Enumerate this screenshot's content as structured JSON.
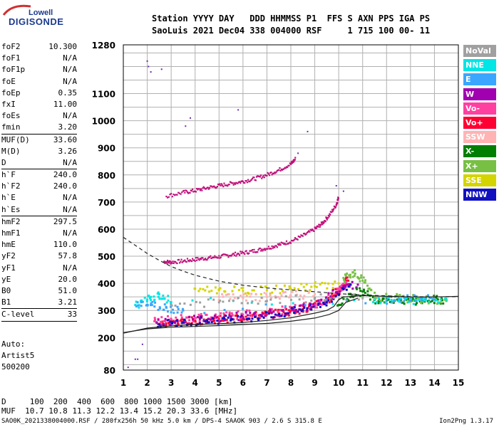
{
  "logo": {
    "line1": "Lowell",
    "line2": "DIGISONDE"
  },
  "header": {
    "line1": "Station YYYY DAY   DDD HHMMSS P1  FFS S AXN PPS IGA PS",
    "line2": "SaoLuis 2021 Dec04 338 004000 RSF     1 715 100 00- 11"
  },
  "params_group1": [
    {
      "name": "foF2",
      "value": "10.300"
    },
    {
      "name": "foF1",
      "value": "N/A"
    },
    {
      "name": "foF1p",
      "value": "N/A"
    },
    {
      "name": "foE",
      "value": "N/A"
    },
    {
      "name": "foEp",
      "value": "0.35"
    },
    {
      "name": "fxI",
      "value": "11.00"
    },
    {
      "name": "foEs",
      "value": "N/A"
    },
    {
      "name": "fmin",
      "value": "3.20"
    }
  ],
  "params_group2": [
    {
      "name": "MUF(D)",
      "value": "33.60"
    },
    {
      "name": "M(D)",
      "value": "3.26"
    },
    {
      "name": "D",
      "value": "N/A"
    }
  ],
  "params_group3": [
    {
      "name": "h`F",
      "value": "240.0"
    },
    {
      "name": "h`F2",
      "value": "240.0"
    },
    {
      "name": "h`E",
      "value": "N/A"
    },
    {
      "name": "h`Es",
      "value": "N/A"
    }
  ],
  "params_group4": [
    {
      "name": "hmF2",
      "value": "297.5"
    },
    {
      "name": "hmF1",
      "value": "N/A"
    },
    {
      "name": "hmE",
      "value": "110.0"
    },
    {
      "name": "yF2",
      "value": "57.8"
    },
    {
      "name": "yF1",
      "value": "N/A"
    },
    {
      "name": "yE",
      "value": "20.0"
    },
    {
      "name": "B0",
      "value": "51.0"
    },
    {
      "name": "B1",
      "value": "3.21"
    }
  ],
  "params_group5": [
    {
      "name": "C-level",
      "value": "33"
    }
  ],
  "auto": {
    "line1": "Auto:",
    "line2": "Artist5",
    "line3": "500200"
  },
  "legend": [
    {
      "label": "NoVal",
      "color": "#a0a0a0"
    },
    {
      "label": "NNE",
      "color": "#00e5e5"
    },
    {
      "label": "E",
      "color": "#3aa6ff"
    },
    {
      "label": "W",
      "color": "#a000b0"
    },
    {
      "label": "Vo-",
      "color": "#ff40a0"
    },
    {
      "label": "Vo+",
      "color": "#ff0033"
    },
    {
      "label": "SSW",
      "color": "#ffb3b3"
    },
    {
      "label": "X-",
      "color": "#007f00"
    },
    {
      "label": "X+",
      "color": "#77c044"
    },
    {
      "label": "SSE",
      "color": "#d4d400"
    },
    {
      "label": "NNW",
      "color": "#1010c0"
    }
  ],
  "footer": {
    "line1": "D     100  200  400  600  800 1000 1500 3000 [km]",
    "line2": "MUF  10.7 10.8 11.3 12.2 13.4 15.2 20.3 33.6 [MHz]",
    "line3": "SAO0K_2021338004000.RSF / 280fx256h 50 kHz 5.0 km / DPS-4 SAAOK 903 / 2.6 S 315.8 E",
    "version": "Ion2Png 1.3.17"
  },
  "chart_data": {
    "type": "scatter",
    "xlim": [
      1,
      15
    ],
    "ylim": [
      80,
      1280
    ],
    "x_ticks": [
      1,
      2,
      3,
      4,
      5,
      6,
      7,
      8,
      9,
      10,
      11,
      12,
      13,
      14,
      15
    ],
    "y_ticks": [
      80,
      200,
      300,
      400,
      500,
      600,
      700,
      800,
      900,
      1000,
      1100,
      1280
    ],
    "grid": true,
    "legend_position": "right",
    "series": [
      {
        "name": "Vo+",
        "color": "#ff0033",
        "points": [
          [
            2.5,
            250
          ],
          [
            3,
            255
          ],
          [
            3.5,
            258
          ],
          [
            4,
            262
          ],
          [
            4.5,
            265
          ],
          [
            5,
            268
          ],
          [
            5.5,
            272
          ],
          [
            6,
            276
          ],
          [
            6.5,
            280
          ],
          [
            7,
            285
          ],
          [
            7.5,
            290
          ],
          [
            8,
            298
          ],
          [
            8.5,
            305
          ],
          [
            9,
            318
          ],
          [
            9.5,
            335
          ],
          [
            9.8,
            355
          ],
          [
            10,
            375
          ],
          [
            10.2,
            395
          ],
          [
            10.4,
            410
          ]
        ]
      },
      {
        "name": "Vo-",
        "color": "#ff40a0",
        "points": [
          [
            2.3,
            260
          ],
          [
            3,
            268
          ],
          [
            4,
            272
          ],
          [
            5,
            278
          ],
          [
            6,
            285
          ],
          [
            7,
            292
          ],
          [
            8,
            305
          ],
          [
            9,
            322
          ],
          [
            9.5,
            340
          ],
          [
            10,
            380
          ],
          [
            10.3,
            400
          ]
        ]
      },
      {
        "name": "W",
        "color": "#a000b0",
        "points": [
          [
            2.4,
            255
          ],
          [
            3.2,
            262
          ],
          [
            4.2,
            268
          ],
          [
            5.2,
            275
          ],
          [
            6.2,
            282
          ],
          [
            7.2,
            290
          ],
          [
            8.2,
            300
          ],
          [
            9.2,
            325
          ],
          [
            10.2,
            390
          ],
          [
            10.8,
            395
          ]
        ]
      },
      {
        "name": "NNW",
        "color": "#1010c0",
        "points": [
          [
            2.5,
            248
          ],
          [
            3.5,
            255
          ],
          [
            4.5,
            262
          ],
          [
            5.5,
            268
          ],
          [
            6.5,
            276
          ],
          [
            7.5,
            286
          ],
          [
            8.5,
            302
          ],
          [
            9.5,
            330
          ],
          [
            10.5,
            395
          ]
        ]
      },
      {
        "name": "X-",
        "color": "#007f00",
        "points": [
          [
            10,
            320
          ],
          [
            10.5,
            360
          ],
          [
            11,
            370
          ],
          [
            11.5,
            340
          ],
          [
            12,
            345
          ],
          [
            12.5,
            340
          ],
          [
            13,
            335
          ],
          [
            13.5,
            338
          ],
          [
            14,
            340
          ],
          [
            14.5,
            338
          ]
        ]
      },
      {
        "name": "X+",
        "color": "#77c044",
        "points": [
          [
            10.2,
            420
          ],
          [
            10.6,
            440
          ],
          [
            11,
            410
          ],
          [
            11.5,
            350
          ],
          [
            12.5,
            345
          ],
          [
            13.5,
            340
          ],
          [
            14.5,
            335
          ]
        ]
      },
      {
        "name": "NNE",
        "color": "#00e5e5",
        "points": [
          [
            1.5,
            320
          ],
          [
            2,
            340
          ],
          [
            2.5,
            360
          ],
          [
            3,
            330
          ],
          [
            11.5,
            340
          ],
          [
            12.5,
            335
          ],
          [
            13.5,
            340
          ],
          [
            14.5,
            340
          ]
        ]
      },
      {
        "name": "E",
        "color": "#3aa6ff",
        "points": [
          [
            1.6,
            330
          ],
          [
            2.2,
            320
          ],
          [
            2.8,
            310
          ],
          [
            3.5,
            300
          ],
          [
            12,
            340
          ],
          [
            13,
            345
          ],
          [
            14,
            340
          ]
        ]
      },
      {
        "name": "SSE",
        "color": "#d4d400",
        "points": [
          [
            4,
            380
          ],
          [
            5,
            375
          ],
          [
            6,
            372
          ],
          [
            7,
            375
          ],
          [
            8,
            380
          ],
          [
            9,
            390
          ],
          [
            10,
            400
          ]
        ]
      },
      {
        "name": "SSW",
        "color": "#ffb3b3",
        "points": [
          [
            5,
            350
          ],
          [
            6,
            345
          ],
          [
            7,
            350
          ],
          [
            8,
            355
          ],
          [
            9,
            360
          ]
        ]
      },
      {
        "name": "NoVal",
        "color": "#a0a0a0",
        "points": [
          [
            3,
            320
          ],
          [
            5,
            330
          ],
          [
            7,
            335
          ],
          [
            9,
            345
          ],
          [
            11,
            345
          ]
        ]
      }
    ],
    "second_hop_trace": {
      "color": "#c0107a",
      "points": [
        [
          2.7,
          480
        ],
        [
          3,
          478
        ],
        [
          3.5,
          482
        ],
        [
          4,
          488
        ],
        [
          4.5,
          493
        ],
        [
          5,
          498
        ],
        [
          5.5,
          505
        ],
        [
          6,
          512
        ],
        [
          6.5,
          520
        ],
        [
          7,
          530
        ],
        [
          7.5,
          542
        ],
        [
          8,
          555
        ],
        [
          8.5,
          575
        ],
        [
          9,
          600
        ],
        [
          9.3,
          620
        ],
        [
          9.6,
          650
        ],
        [
          9.9,
          690
        ],
        [
          10,
          720
        ]
      ]
    },
    "third_hop_trace": {
      "color": "#c0107a",
      "points": [
        [
          2.8,
          722
        ],
        [
          3.5,
          735
        ],
        [
          4,
          742
        ],
        [
          4.5,
          752
        ],
        [
          5,
          760
        ],
        [
          5.5,
          768
        ],
        [
          6,
          776
        ],
        [
          6.5,
          786
        ],
        [
          7,
          800
        ],
        [
          7.5,
          818
        ],
        [
          8,
          840
        ],
        [
          8.2,
          860
        ]
      ]
    },
    "scattered_points": [
      [
        2,
        1220
      ],
      [
        2.05,
        1200
      ],
      [
        2.15,
        1180
      ],
      [
        2.6,
        1190
      ],
      [
        3.6,
        980
      ],
      [
        3.8,
        1010
      ],
      [
        5.8,
        1040
      ],
      [
        8.3,
        880
      ],
      [
        8.7,
        960
      ],
      [
        1.5,
        120
      ],
      [
        1.6,
        120
      ],
      [
        1.8,
        175
      ],
      [
        1.2,
        90
      ],
      [
        9.9,
        760
      ],
      [
        10.2,
        740
      ]
    ],
    "model_lines": [
      {
        "name": "profile-solid",
        "points": [
          [
            1,
            216
          ],
          [
            2,
            235
          ],
          [
            3,
            243
          ],
          [
            4,
            248
          ],
          [
            5,
            251
          ],
          [
            6,
            256
          ],
          [
            7,
            263
          ],
          [
            8,
            273
          ],
          [
            9,
            290
          ],
          [
            9.5,
            300
          ],
          [
            9.8,
            315
          ],
          [
            10,
            340
          ],
          [
            10.2,
            350
          ],
          [
            11,
            355
          ],
          [
            12,
            352
          ],
          [
            13,
            350
          ],
          [
            14,
            350
          ],
          [
            15,
            352
          ]
        ]
      },
      {
        "name": "profile-solid-2",
        "points": [
          [
            1,
            218
          ],
          [
            2,
            232
          ],
          [
            3,
            238
          ],
          [
            4,
            241
          ],
          [
            5,
            244
          ],
          [
            6,
            248
          ],
          [
            7,
            252
          ],
          [
            8,
            260
          ],
          [
            9,
            272
          ],
          [
            9.6,
            285
          ],
          [
            10,
            300
          ],
          [
            10.3,
            330
          ],
          [
            10.8,
            345
          ]
        ]
      },
      {
        "name": "profile-dashed",
        "dashed": true,
        "points": [
          [
            1,
            570
          ],
          [
            1.5,
            540
          ],
          [
            2,
            510
          ],
          [
            2.5,
            485
          ],
          [
            3,
            462
          ],
          [
            3.5,
            445
          ],
          [
            4,
            430
          ],
          [
            5,
            408
          ],
          [
            6,
            393
          ],
          [
            7,
            383
          ],
          [
            8,
            376
          ],
          [
            9,
            369
          ],
          [
            10,
            362
          ],
          [
            11,
            357
          ],
          [
            12,
            354
          ],
          [
            13,
            351
          ],
          [
            14,
            350
          ],
          [
            15,
            351
          ]
        ]
      }
    ]
  }
}
